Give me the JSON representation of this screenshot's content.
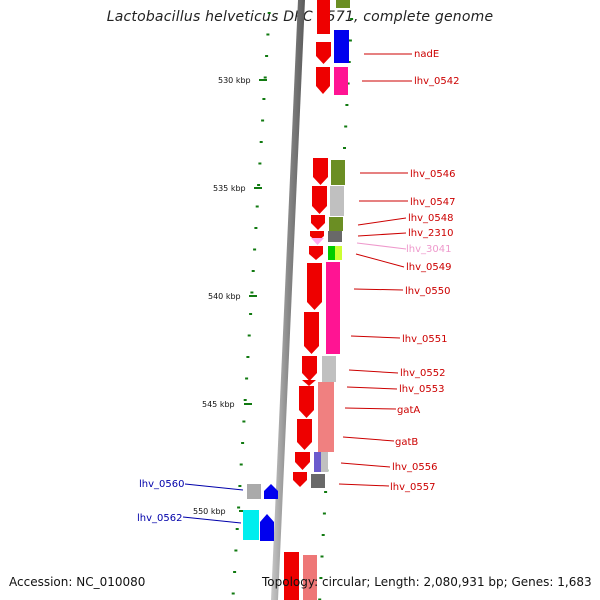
{
  "title": "Lactobacillus helveticus DPC 4571, complete genome",
  "accession": "Accession: NC_010080",
  "topology": "Topology: circular; Length: 2,080,931 bp; Genes: 1,683",
  "colors": {
    "forward_gene": "#ee0000",
    "gene_label": "#cc0000",
    "left_label": "#0000aa",
    "faded_label": "#ee99cc",
    "backbone": "#8a8a8a",
    "tick": "#117a11"
  },
  "kbp_ticks": [
    "530 kbp",
    "535 kbp",
    "540 kbp",
    "545 kbp",
    "550 kbp"
  ],
  "right_labels": [
    {
      "name": "nadE",
      "faded": false
    },
    {
      "name": "lhv_0542",
      "faded": false
    },
    {
      "name": "lhv_0546",
      "faded": false
    },
    {
      "name": "lhv_0547",
      "faded": false
    },
    {
      "name": "lhv_0548",
      "faded": false
    },
    {
      "name": "lhv_2310",
      "faded": false
    },
    {
      "name": "lhv_3041",
      "faded": true
    },
    {
      "name": "lhv_0549",
      "faded": false
    },
    {
      "name": "lhv_0550",
      "faded": false
    },
    {
      "name": "lhv_0551",
      "faded": false
    },
    {
      "name": "lhv_0552",
      "faded": false
    },
    {
      "name": "lhv_0553",
      "faded": false
    },
    {
      "name": "gatA",
      "faded": false
    },
    {
      "name": "gatB",
      "faded": false
    },
    {
      "name": "lhv_0556",
      "faded": false
    },
    {
      "name": "lhv_0557",
      "faded": false
    }
  ],
  "left_labels": [
    {
      "name": "lhv_0560"
    },
    {
      "name": "lhv_0562"
    }
  ]
}
